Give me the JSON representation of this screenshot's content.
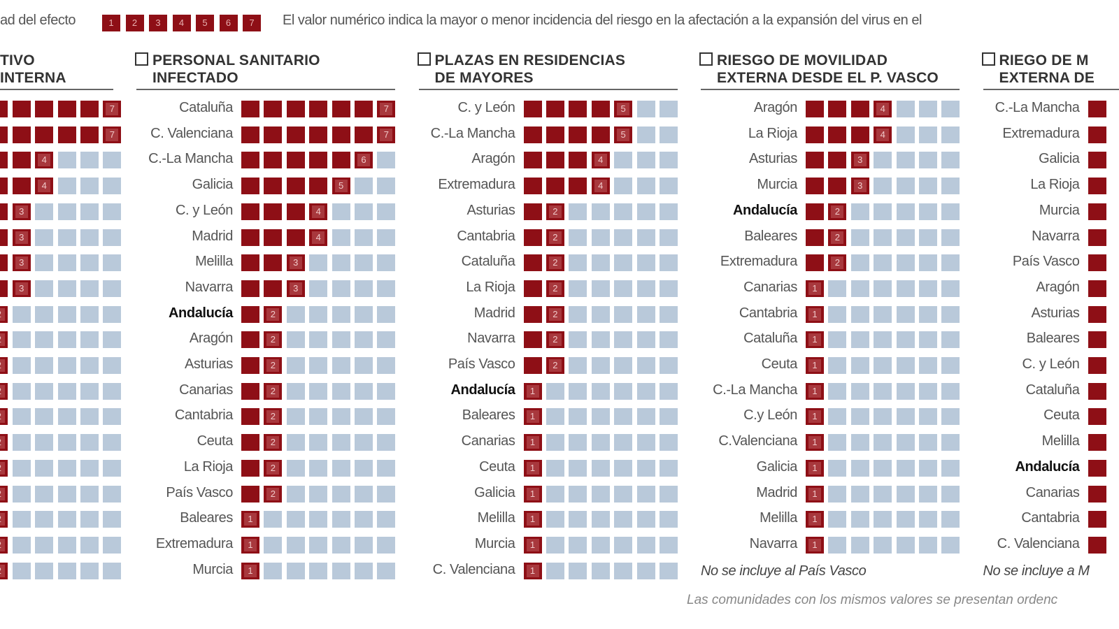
{
  "legend": {
    "label": "ad del efecto",
    "levels": [
      "1",
      "2",
      "3",
      "4",
      "5",
      "6",
      "7"
    ]
  },
  "description": "El valor numérico indica la mayor o menor incidencia del riesgo en la afectación a la expansión del virus en el",
  "footnote": "Las comunidades con los mismos valores se presentan ordenc",
  "colors": {
    "filled": "#8e0f16",
    "empty": "#b9c9da"
  },
  "chart_data": {
    "type": "table",
    "scale_max": 7,
    "panels": [
      {
        "title_l1": "TIVO",
        "title_l2": "INTERNA",
        "checkbox": false,
        "rows": [
          {
            "label": "",
            "value": 7
          },
          {
            "label": "",
            "value": 7
          },
          {
            "label": "",
            "value": 4
          },
          {
            "label": "",
            "value": 4
          },
          {
            "label": "",
            "value": 3
          },
          {
            "label": "",
            "value": 3
          },
          {
            "label": "",
            "value": 3
          },
          {
            "label": "",
            "value": 3
          },
          {
            "label": "",
            "value": 2
          },
          {
            "label": "",
            "value": 2
          },
          {
            "label": "",
            "value": 2
          },
          {
            "label": "",
            "value": 2
          },
          {
            "label": "",
            "value": 2
          },
          {
            "label": "",
            "value": 2
          },
          {
            "label": "",
            "value": 2
          },
          {
            "label": "",
            "value": 2
          },
          {
            "label": "",
            "value": 2
          },
          {
            "label": "",
            "value": 2
          },
          {
            "label": "",
            "value": 2
          }
        ]
      },
      {
        "title_l1": "PERSONAL SANITARIO",
        "title_l2": "INFECTADO",
        "checkbox": true,
        "rows": [
          {
            "label": "Cataluña",
            "value": 7
          },
          {
            "label": "C. Valenciana",
            "value": 7
          },
          {
            "label": "C.-La Mancha",
            "value": 6
          },
          {
            "label": "Galicia",
            "value": 5
          },
          {
            "label": "C. y León",
            "value": 4
          },
          {
            "label": "Madrid",
            "value": 4
          },
          {
            "label": "Melilla",
            "value": 3
          },
          {
            "label": "Navarra",
            "value": 3
          },
          {
            "label": "Andalucía",
            "value": 2,
            "bold": true
          },
          {
            "label": "Aragón",
            "value": 2
          },
          {
            "label": "Asturias",
            "value": 2
          },
          {
            "label": "Canarias",
            "value": 2
          },
          {
            "label": "Cantabria",
            "value": 2
          },
          {
            "label": "Ceuta",
            "value": 2
          },
          {
            "label": "La Rioja",
            "value": 2
          },
          {
            "label": "País Vasco",
            "value": 2
          },
          {
            "label": "Baleares",
            "value": 1
          },
          {
            "label": "Extremadura",
            "value": 1
          },
          {
            "label": "Murcia",
            "value": 1
          }
        ]
      },
      {
        "title_l1": "PLAZAS EN RESIDENCIAS",
        "title_l2": "DE MAYORES",
        "checkbox": true,
        "rows": [
          {
            "label": "C. y León",
            "value": 5
          },
          {
            "label": "C.-La Mancha",
            "value": 5
          },
          {
            "label": "Aragón",
            "value": 4
          },
          {
            "label": "Extremadura",
            "value": 4
          },
          {
            "label": "Asturias",
            "value": 2
          },
          {
            "label": "Cantabria",
            "value": 2
          },
          {
            "label": "Cataluña",
            "value": 2
          },
          {
            "label": "La Rioja",
            "value": 2
          },
          {
            "label": "Madrid",
            "value": 2
          },
          {
            "label": "Navarra",
            "value": 2
          },
          {
            "label": "País Vasco",
            "value": 2
          },
          {
            "label": "Andalucía",
            "value": 1,
            "bold": true
          },
          {
            "label": "Baleares",
            "value": 1
          },
          {
            "label": "Canarias",
            "value": 1
          },
          {
            "label": "Ceuta",
            "value": 1
          },
          {
            "label": "Galicia",
            "value": 1
          },
          {
            "label": "Melilla",
            "value": 1
          },
          {
            "label": "Murcia",
            "value": 1
          },
          {
            "label": "C. Valenciana",
            "value": 1
          }
        ]
      },
      {
        "title_l1": "RIESGO DE MOVILIDAD",
        "title_l2": "EXTERNA DESDE EL P. VASCO",
        "checkbox": true,
        "note": "No se incluye al País Vasco",
        "rows": [
          {
            "label": "Aragón",
            "value": 4
          },
          {
            "label": "La Rioja",
            "value": 4
          },
          {
            "label": "Asturias",
            "value": 3
          },
          {
            "label": "Murcia",
            "value": 3
          },
          {
            "label": "Andalucía",
            "value": 2,
            "bold": true
          },
          {
            "label": "Baleares",
            "value": 2
          },
          {
            "label": "Extremadura",
            "value": 2
          },
          {
            "label": "Canarias",
            "value": 1
          },
          {
            "label": "Cantabria",
            "value": 1
          },
          {
            "label": "Cataluña",
            "value": 1
          },
          {
            "label": "Ceuta",
            "value": 1
          },
          {
            "label": "C.-La Mancha",
            "value": 1
          },
          {
            "label": "C.y León",
            "value": 1
          },
          {
            "label": "C.Valenciana",
            "value": 1
          },
          {
            "label": "Galicia",
            "value": 1
          },
          {
            "label": "Madrid",
            "value": 1
          },
          {
            "label": "Melilla",
            "value": 1
          },
          {
            "label": "Navarra",
            "value": 1
          }
        ]
      },
      {
        "title_l1": "RIEGO DE M",
        "title_l2": "EXTERNA DE",
        "checkbox": true,
        "note": "No se incluye a M",
        "rows": [
          {
            "label": "C.-La Mancha",
            "value": 1
          },
          {
            "label": "Extremadura",
            "value": 1
          },
          {
            "label": "Galicia",
            "value": 1
          },
          {
            "label": "La Rioja",
            "value": 1
          },
          {
            "label": "Murcia",
            "value": 1
          },
          {
            "label": "Navarra",
            "value": 1
          },
          {
            "label": "País Vasco",
            "value": 1
          },
          {
            "label": "Aragón",
            "value": 1
          },
          {
            "label": "Asturias",
            "value": 1
          },
          {
            "label": "Baleares",
            "value": 1
          },
          {
            "label": "C. y León",
            "value": 1
          },
          {
            "label": "Cataluña",
            "value": 1
          },
          {
            "label": "Ceuta",
            "value": 1
          },
          {
            "label": "Melilla",
            "value": 1
          },
          {
            "label": "Andalucía",
            "value": 1,
            "bold": true
          },
          {
            "label": "Canarias",
            "value": 1
          },
          {
            "label": "Cantabria",
            "value": 1
          },
          {
            "label": "C. Valenciana",
            "value": 1
          }
        ]
      }
    ]
  }
}
